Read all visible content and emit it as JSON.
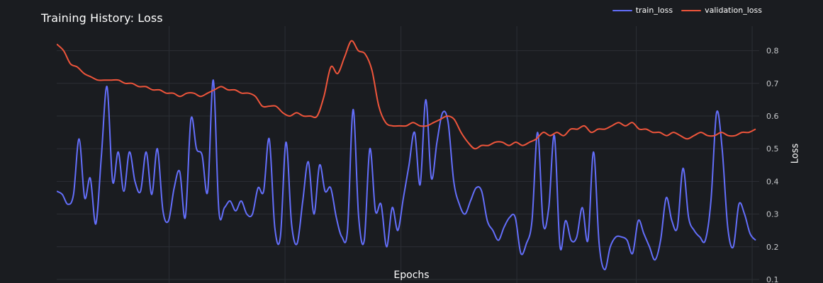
{
  "chart_data": {
    "type": "line",
    "title": "Training History: Loss",
    "xlabel": "Epochs",
    "ylabel": "Loss",
    "xlim": [
      0,
      200
    ],
    "ylim": [
      0.1,
      0.88
    ],
    "yticks": [
      "0.1",
      "0.2",
      "0.3",
      "0.4",
      "0.5",
      "0.6",
      "0.7",
      "0.8"
    ],
    "ytick_values": [
      0.1,
      0.2,
      0.3,
      0.4,
      0.5,
      0.6,
      0.7,
      0.8
    ],
    "xgrid_values": [
      32,
      65,
      98,
      131,
      165,
      198
    ],
    "grid": true,
    "legend_position": "top-right",
    "series": [
      {
        "name": "train_loss",
        "color": "#636efa",
        "values": [
          0.37,
          0.36,
          0.33,
          0.36,
          0.53,
          0.35,
          0.41,
          0.27,
          0.48,
          0.69,
          0.4,
          0.49,
          0.37,
          0.49,
          0.4,
          0.37,
          0.49,
          0.36,
          0.5,
          0.31,
          0.28,
          0.38,
          0.43,
          0.29,
          0.59,
          0.5,
          0.48,
          0.37,
          0.71,
          0.31,
          0.32,
          0.34,
          0.31,
          0.34,
          0.3,
          0.3,
          0.38,
          0.37,
          0.53,
          0.26,
          0.23,
          0.52,
          0.27,
          0.21,
          0.34,
          0.46,
          0.3,
          0.45,
          0.37,
          0.38,
          0.29,
          0.23,
          0.25,
          0.62,
          0.29,
          0.22,
          0.5,
          0.31,
          0.33,
          0.2,
          0.32,
          0.25,
          0.35,
          0.45,
          0.55,
          0.39,
          0.65,
          0.41,
          0.52,
          0.61,
          0.58,
          0.4,
          0.33,
          0.3,
          0.34,
          0.38,
          0.37,
          0.28,
          0.25,
          0.22,
          0.26,
          0.29,
          0.29,
          0.18,
          0.21,
          0.28,
          0.55,
          0.27,
          0.32,
          0.54,
          0.2,
          0.28,
          0.22,
          0.23,
          0.32,
          0.22,
          0.49,
          0.21,
          0.13,
          0.2,
          0.23,
          0.23,
          0.22,
          0.18,
          0.28,
          0.24,
          0.2,
          0.16,
          0.22,
          0.35,
          0.28,
          0.26,
          0.44,
          0.29,
          0.25,
          0.23,
          0.22,
          0.34,
          0.61,
          0.5,
          0.26,
          0.2,
          0.33,
          0.3,
          0.24,
          0.22
        ],
        "x_start": 0,
        "x_end": 199
      },
      {
        "name": "validation_loss",
        "color": "#ef553b",
        "values": [
          0.82,
          0.8,
          0.76,
          0.75,
          0.73,
          0.72,
          0.71,
          0.71,
          0.71,
          0.71,
          0.7,
          0.7,
          0.69,
          0.69,
          0.68,
          0.68,
          0.67,
          0.67,
          0.66,
          0.67,
          0.67,
          0.66,
          0.67,
          0.68,
          0.69,
          0.68,
          0.68,
          0.67,
          0.67,
          0.66,
          0.63,
          0.63,
          0.63,
          0.61,
          0.6,
          0.61,
          0.6,
          0.6,
          0.6,
          0.66,
          0.75,
          0.73,
          0.78,
          0.83,
          0.8,
          0.79,
          0.74,
          0.63,
          0.58,
          0.57,
          0.57,
          0.57,
          0.58,
          0.57,
          0.57,
          0.58,
          0.59,
          0.6,
          0.59,
          0.55,
          0.52,
          0.5,
          0.51,
          0.51,
          0.52,
          0.52,
          0.51,
          0.52,
          0.51,
          0.52,
          0.53,
          0.55,
          0.54,
          0.55,
          0.54,
          0.56,
          0.56,
          0.57,
          0.55,
          0.56,
          0.56,
          0.57,
          0.58,
          0.57,
          0.58,
          0.56,
          0.56,
          0.55,
          0.55,
          0.54,
          0.55,
          0.54,
          0.53,
          0.54,
          0.55,
          0.54,
          0.54,
          0.55,
          0.54,
          0.54,
          0.55,
          0.55,
          0.56
        ],
        "x_start": 0,
        "x_end": 199
      }
    ]
  }
}
